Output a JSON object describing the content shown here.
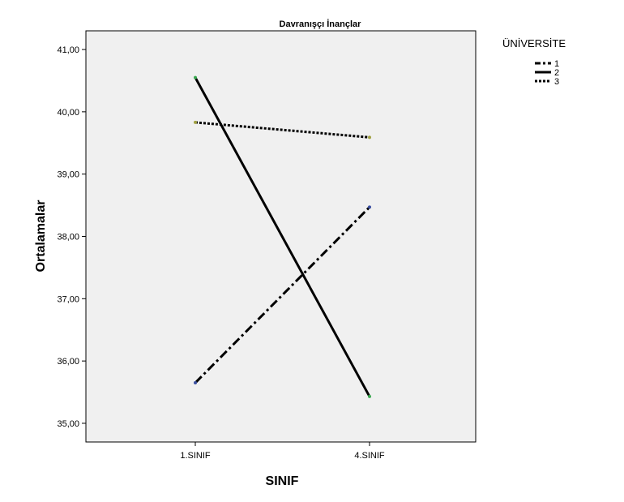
{
  "chart_data": {
    "type": "line",
    "title": "Davranışçı İnançlar",
    "xlabel": "SINIF",
    "ylabel": "Ortalamalar",
    "categories": [
      "1.SINIF",
      "4.SINIF"
    ],
    "ylim": [
      34.7,
      41.3
    ],
    "yticks": [
      35,
      36,
      37,
      38,
      39,
      40,
      41
    ],
    "ytick_labels": [
      "35,00",
      "36,00",
      "37,00",
      "38,00",
      "39,00",
      "40,00",
      "41,00"
    ],
    "grid": false,
    "plot_background": "#f0f0f0",
    "legend": {
      "title": "ÜNİVERSİTE",
      "placement": "top-right-outside"
    },
    "series": [
      {
        "name": "1",
        "values": [
          35.65,
          38.47
        ],
        "dash": "dash-dot",
        "marker_color": "#3a4fa0",
        "line_color": "#000000"
      },
      {
        "name": "2",
        "values": [
          40.55,
          35.43
        ],
        "dash": "solid",
        "marker_color": "#3aa850",
        "line_color": "#000000"
      },
      {
        "name": "3",
        "values": [
          39.83,
          39.59
        ],
        "dash": "dotted",
        "marker_color": "#a0a040",
        "line_color": "#000000"
      }
    ]
  }
}
